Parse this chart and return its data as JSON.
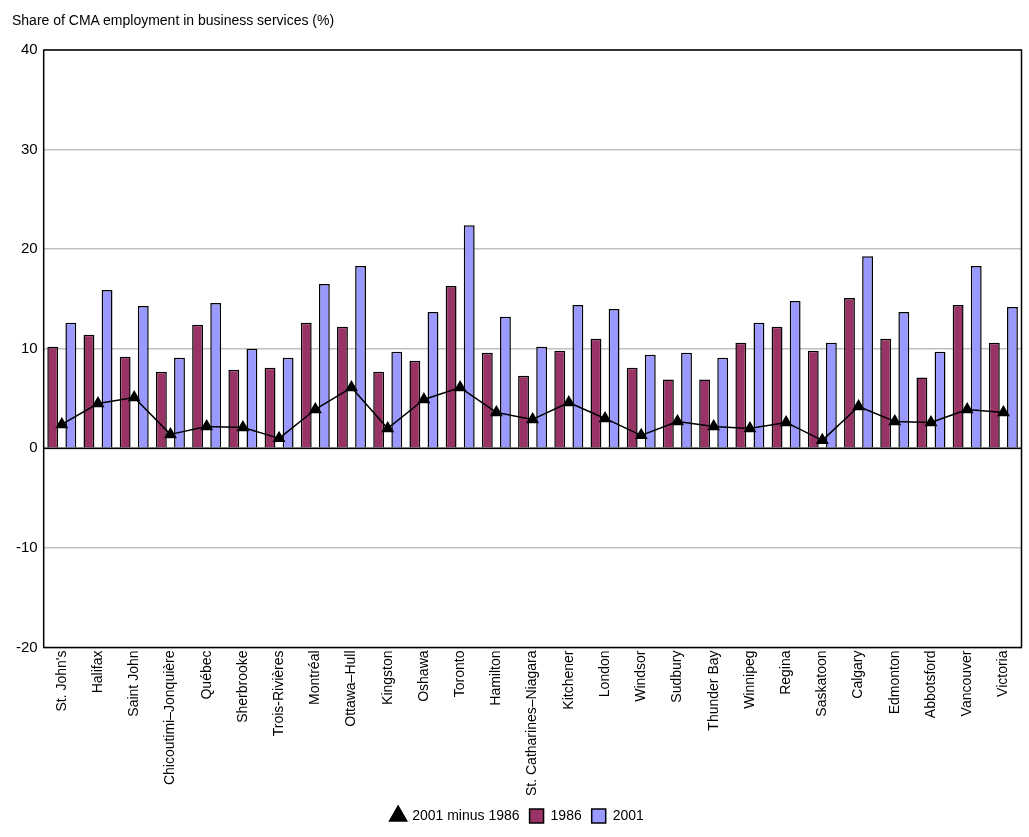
{
  "chart_data": {
    "type": "bar",
    "title": "Share of CMA employment in business services (%)",
    "categories": [
      "St. John's",
      "Halifax",
      "Saint John",
      "Chicoutimi–Jonquière",
      "Québec",
      "Sherbrooke",
      "Trois-Rivières",
      "Montréal",
      "Ottawa–Hull",
      "Kingston",
      "Oshawa",
      "Toronto",
      "Hamilton",
      "St. Catharines–Niagara",
      "Kitchener",
      "London",
      "Windsor",
      "Sudbury",
      "Thunder Bay",
      "Winnipeg",
      "Regina",
      "Saskatoon",
      "Calgary",
      "Edmonton",
      "Abbotsford",
      "Vancouver",
      "Victoria"
    ],
    "series": [
      {
        "name": "1986",
        "color": "#993366",
        "values": [
          10.2,
          11.4,
          9.2,
          7.7,
          12.4,
          7.9,
          8.1,
          12.6,
          12.2,
          7.7,
          8.8,
          16.3,
          9.6,
          7.3,
          9.8,
          11.0,
          8.1,
          6.9,
          6.9,
          10.6,
          12.2,
          9.8,
          15.1,
          11.0,
          7.1,
          14.4,
          10.6
        ]
      },
      {
        "name": "2001",
        "color": "#9999ff",
        "values": [
          12.6,
          15.9,
          14.3,
          9.1,
          14.6,
          10.0,
          9.1,
          16.5,
          18.3,
          9.7,
          13.7,
          22.4,
          13.2,
          10.2,
          14.4,
          14.0,
          9.4,
          9.6,
          9.1,
          12.6,
          14.8,
          10.6,
          19.3,
          13.7,
          9.7,
          18.3,
          14.2
        ]
      },
      {
        "name": "2001 minus 1986",
        "color": "#000000",
        "type": "line",
        "marker": "triangle",
        "values": [
          2.4,
          4.5,
          5.1,
          1.4,
          2.2,
          2.1,
          1.0,
          3.9,
          6.1,
          2.0,
          4.9,
          6.1,
          3.6,
          2.9,
          4.6,
          3.0,
          1.3,
          2.7,
          2.2,
          2.0,
          2.6,
          0.8,
          4.2,
          2.7,
          2.6,
          3.9,
          3.6
        ]
      }
    ],
    "ylim": [
      -20,
      40
    ],
    "yticks": [
      -20,
      -10,
      0,
      10,
      20,
      30,
      40
    ],
    "grid": "y",
    "legend": "bottom"
  }
}
